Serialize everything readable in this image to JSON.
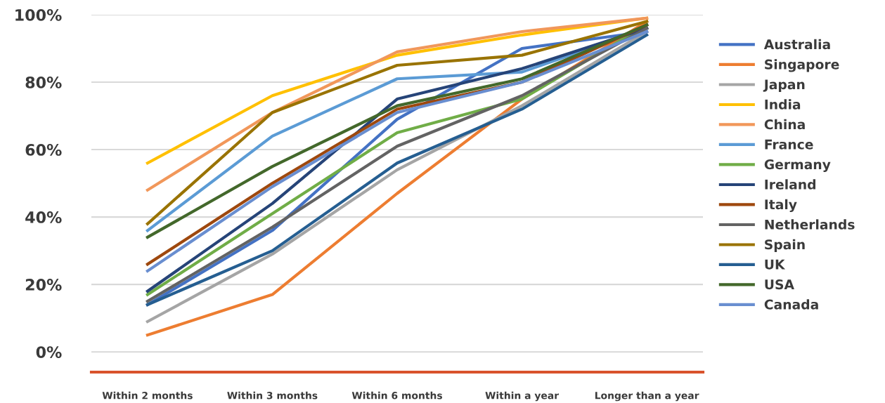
{
  "chart_data": {
    "type": "line",
    "categories": [
      "Within 2 months",
      "Within 3 months",
      "Within 6 months",
      "Within a year",
      "Longer than a year"
    ],
    "series": [
      {
        "name": "Australia",
        "color": "#4472c4",
        "values": [
          14,
          36,
          69,
          90,
          95
        ]
      },
      {
        "name": "Singapore",
        "color": "#ed7d31",
        "values": [
          5,
          17,
          47,
          75,
          98
        ]
      },
      {
        "name": "Japan",
        "color": "#a5a5a5",
        "values": [
          9,
          29,
          54,
          73,
          95
        ]
      },
      {
        "name": "India",
        "color": "#ffc000",
        "values": [
          56,
          76,
          88,
          94,
          99
        ]
      },
      {
        "name": "China",
        "color": "#f1975a",
        "values": [
          48,
          71,
          89,
          95,
          99
        ]
      },
      {
        "name": "France",
        "color": "#5b9bd5",
        "values": [
          36,
          64,
          81,
          83,
          96
        ]
      },
      {
        "name": "Germany",
        "color": "#70ad47",
        "values": [
          17,
          41,
          65,
          75,
          97
        ]
      },
      {
        "name": "Ireland",
        "color": "#264478",
        "values": [
          18,
          44,
          75,
          84,
          96
        ]
      },
      {
        "name": "Italy",
        "color": "#9e480e",
        "values": [
          26,
          50,
          72,
          80,
          97
        ]
      },
      {
        "name": "Netherlands",
        "color": "#636363",
        "values": [
          15,
          37,
          61,
          76,
          96
        ]
      },
      {
        "name": "Spain",
        "color": "#997300",
        "values": [
          38,
          71,
          85,
          88,
          98
        ]
      },
      {
        "name": "UK",
        "color": "#255e91",
        "values": [
          14,
          30,
          56,
          72,
          94
        ]
      },
      {
        "name": "USA",
        "color": "#43682b",
        "values": [
          34,
          55,
          73,
          81,
          97
        ]
      },
      {
        "name": "Canada",
        "color": "#698ed0",
        "values": [
          24,
          49,
          71,
          80,
          95
        ]
      }
    ],
    "ylim": [
      -6,
      100
    ],
    "yticks": [
      {
        "value": 0,
        "label": "0%"
      },
      {
        "value": 20,
        "label": "20%"
      },
      {
        "value": 40,
        "label": "40%"
      },
      {
        "value": 60,
        "label": "60%"
      },
      {
        "value": 80,
        "label": "80%"
      },
      {
        "value": 100,
        "label": "100%"
      }
    ],
    "grid": "y",
    "legend": "right",
    "marker": "none",
    "line_style": "solid"
  }
}
